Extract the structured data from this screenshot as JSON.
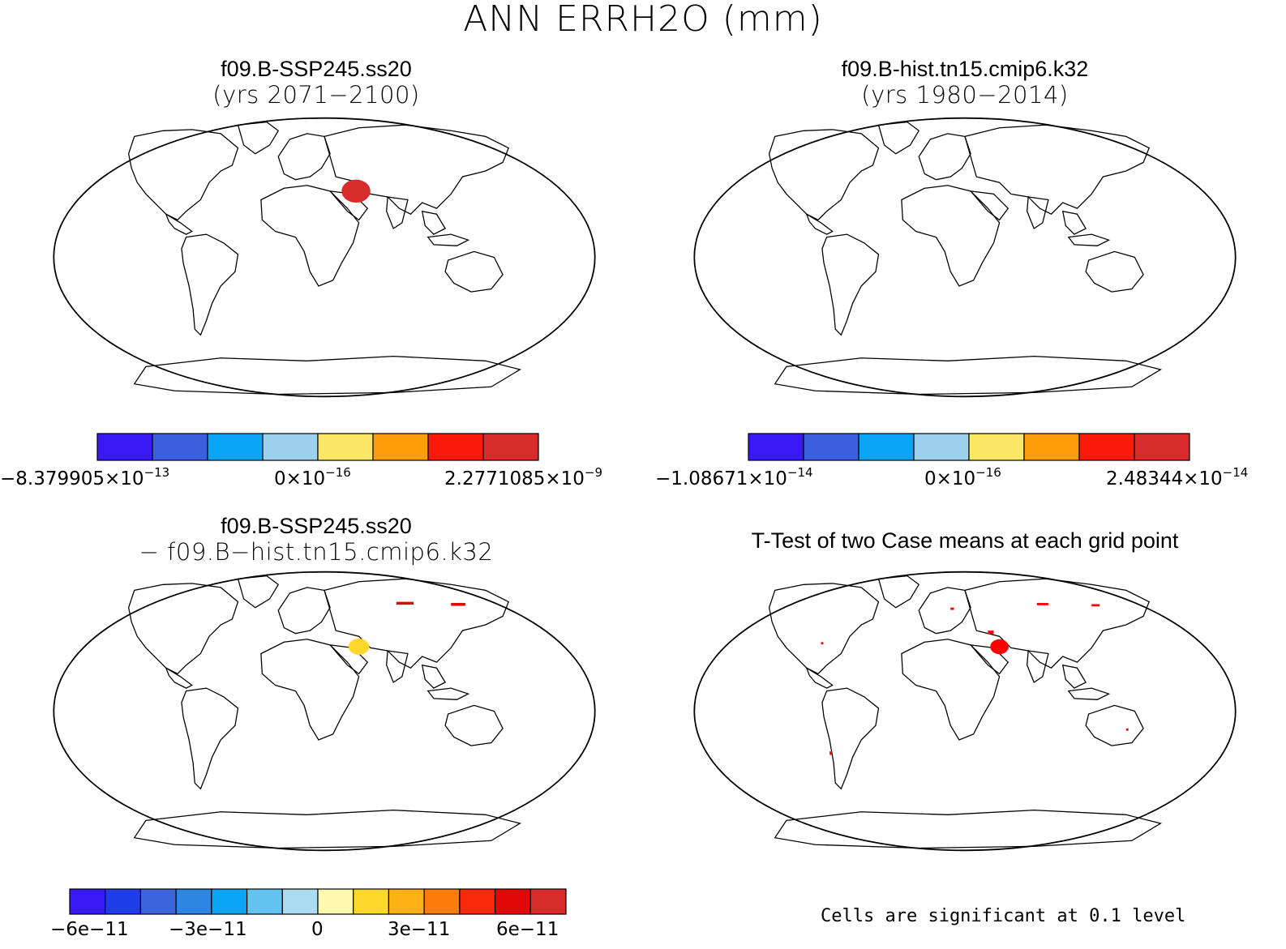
{
  "title": "ANN ERRH2O (mm)",
  "panels": [
    {
      "id": "case1",
      "title": "f09.B-SSP245.ss20",
      "subtitle": "(yrs 2071−2100)",
      "colorbar": {
        "colors": [
          "#3a18f5",
          "#3c5fdf",
          "#0aa5f5",
          "#9ed1ee",
          "#fde866",
          "#fc9d0a",
          "#fb1a0a",
          "#d82c2c"
        ],
        "labels": [
          {
            "mant": "−8.379905×10",
            "exp": "−13"
          },
          {
            "mant": "0×10",
            "exp": "−16"
          },
          {
            "mant": "2.2771085×10",
            "exp": "−9"
          }
        ]
      }
    },
    {
      "id": "case2",
      "title": "f09.B-hist.tn15.cmip6.k32",
      "subtitle": "(yrs 1980−2014)",
      "colorbar": {
        "colors": [
          "#3a18f5",
          "#3c5fdf",
          "#0aa5f5",
          "#9ed1ee",
          "#fde866",
          "#fc9d0a",
          "#fb1a0a",
          "#d82c2c"
        ],
        "labels": [
          {
            "mant": "−1.08671×10",
            "exp": "−14"
          },
          {
            "mant": "0×10",
            "exp": "−16"
          },
          {
            "mant": "2.48344×10",
            "exp": "−14"
          }
        ]
      }
    },
    {
      "id": "diff",
      "title": "f09.B-SSP245.ss20",
      "subtitle": "− f09.B−hist.tn15.cmip6.k32",
      "colorbar": {
        "colors": [
          "#3a18f5",
          "#1e3ce8",
          "#3c64dc",
          "#2e86e4",
          "#0aa5f5",
          "#62c3f0",
          "#acdcf2",
          "#fdfab0",
          "#fdd82a",
          "#fcb214",
          "#fc7c0a",
          "#fb2a0a",
          "#e00808",
          "#d82c2c"
        ],
        "labels": [
          "−6e−11",
          "−3e−11",
          "0",
          "3e−11",
          "6e−11"
        ]
      }
    },
    {
      "id": "ttest",
      "title": "T-Test of two Case means at each grid point",
      "note": "Cells are significant at 0.1 level",
      "colors": {
        "significant": "#ff0000"
      }
    }
  ]
}
